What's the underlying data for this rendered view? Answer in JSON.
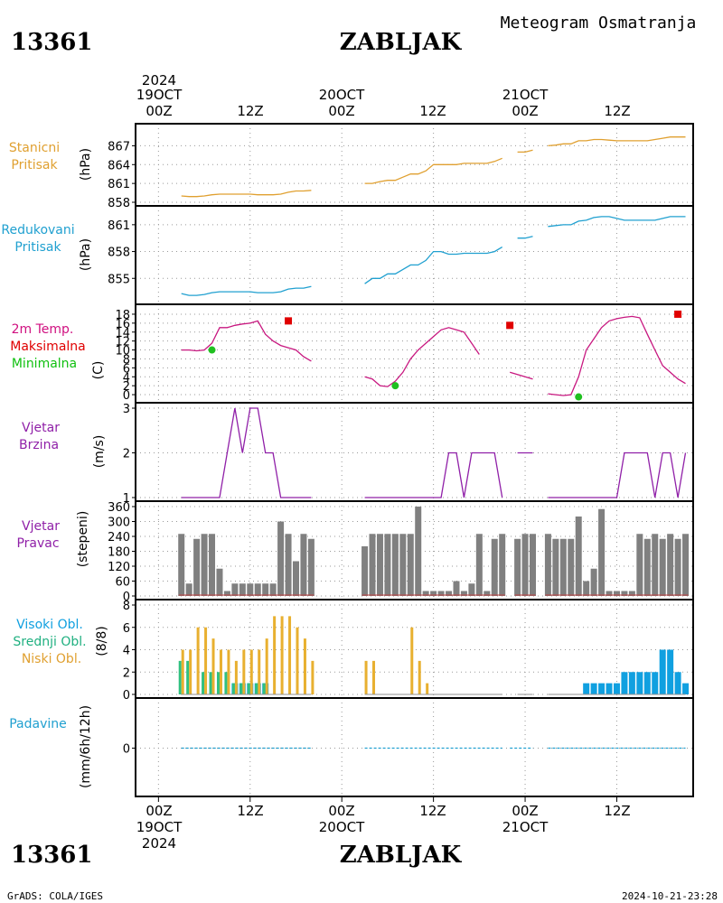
{
  "header": {
    "station_id": "13361",
    "station_name": "ZABLJAK",
    "title": "Meteogram Osmatranja"
  },
  "footer": {
    "station_id": "13361",
    "station_name": "ZABLJAK",
    "credit": "GrADS: COLA/IGES",
    "timestamp": "2024-10-21-23:28"
  },
  "time_axis": {
    "year_label": "2024",
    "day_labels": [
      "19OCT",
      "20OCT",
      "21OCT"
    ],
    "hour_labels": [
      "00Z",
      "12Z",
      "00Z",
      "12Z",
      "00Z",
      "12Z"
    ],
    "hours_span": [
      -3,
      70
    ]
  },
  "panel_labels": {
    "pressure": [
      "Stanicni",
      "Pritisak"
    ],
    "reduced": [
      "Redukovani",
      "Pritisak"
    ],
    "temp": [
      "2m Temp.",
      "Maksimalna",
      "Minimalna"
    ],
    "wind_speed": [
      "Vjetar",
      "Brzina"
    ],
    "wind_dir": [
      "Vjetar",
      "Pravac"
    ],
    "clouds": [
      "Visoki Obl.",
      "Srednji Obl.",
      "Niski Obl."
    ],
    "precip": [
      "Padavine"
    ]
  },
  "unit_labels": {
    "pressure": "(hPa)",
    "reduced": "(hPa)",
    "temp": "(C)",
    "wind_speed": "(m/s)",
    "wind_dir": "(stepeni)",
    "clouds": "(8/8)",
    "precip": "(mm/6h/12h)"
  },
  "colors": {
    "pressure": "#e0a030",
    "reduced": "#20a0d0",
    "temp_line": "#c81880",
    "tmax": "#e00000",
    "tmin": "#20c020",
    "wind": "#9020a8",
    "wind_dir": "#808080",
    "high_cloud": "#10a0e0",
    "mid_cloud": "#30c080",
    "low_cloud": "#e8b030",
    "precip": "#20a0d0",
    "label_pressure": "#e0a030",
    "label_reduced": "#20a0d0",
    "label_temp": "#d01080",
    "label_tmax": "#e00000",
    "label_tmin": "#10c010",
    "label_wind": "#9020a8",
    "label_clouds_high": "#10a0e0",
    "label_clouds_mid": "#20b080",
    "label_clouds_low": "#e0a030",
    "label_precip": "#20a0d0"
  },
  "chart_data": [
    {
      "type": "line",
      "name": "pressure",
      "ylabel": "(hPa)",
      "ylim": [
        858,
        868.5
      ],
      "yticks": [
        858,
        861,
        864,
        867
      ],
      "segments": [
        {
          "x": [
            3,
            4,
            5,
            6,
            7,
            8,
            9,
            10,
            11,
            12,
            13,
            14,
            15,
            16,
            17,
            18,
            19,
            20
          ],
          "y": [
            859,
            858.9,
            858.9,
            859,
            859.2,
            859.3,
            859.3,
            859.3,
            859.3,
            859.3,
            859.2,
            859.2,
            859.2,
            859.3,
            859.6,
            859.8,
            859.8,
            859.9
          ]
        },
        {
          "x": [
            27,
            28,
            29,
            30,
            31,
            32,
            33,
            34,
            35,
            36,
            37,
            38,
            39,
            40,
            41,
            42,
            43,
            44,
            45
          ],
          "y": [
            861,
            861,
            861.3,
            861.5,
            861.5,
            862,
            862.5,
            862.5,
            863,
            864,
            864,
            864,
            864,
            864.2,
            864.2,
            864.2,
            864.2,
            864.5,
            865
          ]
        },
        {
          "x": [
            47,
            48,
            49
          ],
          "y": [
            866,
            866,
            866.3
          ]
        },
        {
          "x": [
            51,
            52,
            53,
            54,
            55,
            56,
            57,
            58,
            59,
            60,
            61,
            62,
            63,
            64,
            65,
            66,
            67,
            68,
            69
          ],
          "y": [
            867,
            867.1,
            867.3,
            867.3,
            867.8,
            867.8,
            868,
            868,
            867.9,
            867.8,
            867.8,
            867.8,
            867.8,
            867.8,
            868,
            868.2,
            868.4,
            868.4,
            868.4
          ]
        }
      ]
    },
    {
      "type": "line",
      "name": "reduced",
      "ylabel": "(hPa)",
      "ylim": [
        852.5,
        862.5
      ],
      "yticks": [
        855,
        858,
        861
      ],
      "segments": [
        {
          "x": [
            3,
            4,
            5,
            6,
            7,
            8,
            9,
            10,
            11,
            12,
            13,
            14,
            15,
            16,
            17,
            18,
            19,
            20
          ],
          "y": [
            853.3,
            853.1,
            853.1,
            853.2,
            853.4,
            853.5,
            853.5,
            853.5,
            853.5,
            853.5,
            853.4,
            853.4,
            853.4,
            853.5,
            853.8,
            853.9,
            853.9,
            854.1
          ]
        },
        {
          "x": [
            27,
            28,
            29,
            30,
            31,
            32,
            33,
            34,
            35,
            36,
            37,
            38,
            39,
            40,
            41,
            42,
            43,
            44,
            45
          ],
          "y": [
            854.4,
            855,
            855,
            855.5,
            855.5,
            856,
            856.5,
            856.5,
            857,
            858,
            858,
            857.7,
            857.7,
            857.8,
            857.8,
            857.8,
            857.8,
            858,
            858.5
          ]
        },
        {
          "x": [
            47,
            48,
            49
          ],
          "y": [
            859.5,
            859.5,
            859.7
          ]
        },
        {
          "x": [
            51,
            52,
            53,
            54,
            55,
            56,
            57,
            58,
            59,
            60,
            61,
            62,
            63,
            64,
            65,
            66,
            67,
            68,
            69
          ],
          "y": [
            860.8,
            860.9,
            861,
            861,
            861.4,
            861.5,
            861.8,
            861.9,
            861.9,
            861.7,
            861.5,
            861.5,
            861.5,
            861.5,
            861.5,
            861.7,
            861.9,
            861.9,
            861.9
          ]
        }
      ]
    },
    {
      "type": "line",
      "name": "temperature",
      "ylabel": "(C)",
      "ylim": [
        -1,
        19
      ],
      "yticks": [
        0,
        2,
        4,
        6,
        8,
        10,
        12,
        14,
        16,
        18
      ],
      "segments": [
        {
          "x": [
            3,
            4,
            5,
            6,
            7,
            8,
            9,
            10,
            11,
            12,
            13,
            14,
            15,
            16,
            17,
            18,
            19,
            20
          ],
          "y": [
            10,
            10,
            9.8,
            10,
            11.5,
            15,
            15,
            15.5,
            15.8,
            16,
            16.5,
            13.5,
            12,
            11,
            10.5,
            10,
            8.5,
            7.5
          ]
        },
        {
          "x": [
            27,
            28,
            29,
            30,
            31,
            32,
            33,
            34,
            35,
            36,
            37,
            38,
            39,
            40,
            41,
            42,
            43,
            44,
            45
          ],
          "y": [
            4,
            3.5,
            2,
            1.8,
            3,
            5,
            8,
            10,
            11.5,
            13,
            14.5,
            15,
            14.5,
            14,
            11.5,
            9,
            null,
            null,
            null
          ]
        },
        {
          "x": [
            46,
            47,
            48,
            49
          ],
          "y": [
            5,
            4.5,
            4,
            3.5
          ]
        },
        {
          "x": [
            51,
            52,
            53,
            54,
            55,
            56,
            57,
            58,
            59,
            60,
            61,
            62,
            63,
            64,
            65,
            66,
            67,
            68,
            69
          ],
          "y": [
            0.2,
            0,
            -0.2,
            0,
            4,
            10,
            12.5,
            15,
            16.5,
            17,
            17.3,
            17.5,
            17.2,
            13.5,
            10,
            6.5,
            5,
            3.5,
            2.5
          ]
        }
      ],
      "tmax": [
        {
          "x": 17,
          "y": 16.5
        },
        {
          "x": 46,
          "y": 15.5
        },
        {
          "x": 68,
          "y": 18
        }
      ],
      "tmin": [
        {
          "x": 7,
          "y": 10
        },
        {
          "x": 31,
          "y": 2
        },
        {
          "x": 55,
          "y": -0.5
        }
      ]
    },
    {
      "type": "line",
      "name": "wind_speed",
      "ylabel": "(m/s)",
      "ylim": [
        1,
        3
      ],
      "yticks": [
        1,
        2,
        3
      ],
      "segments": [
        {
          "x": [
            3,
            4,
            5,
            6,
            7,
            8,
            9,
            10,
            11,
            12,
            13,
            14,
            15,
            16,
            17,
            18,
            19,
            20
          ],
          "y": [
            1,
            1,
            1,
            1,
            1,
            1,
            2,
            3,
            2,
            3,
            3,
            2,
            2,
            1,
            1,
            1,
            1,
            1
          ]
        },
        {
          "x": [
            27,
            28,
            29,
            30,
            31,
            32,
            33,
            34,
            35,
            36,
            37,
            38,
            39,
            40,
            41,
            42,
            43,
            44,
            45
          ],
          "y": [
            1,
            1,
            1,
            1,
            1,
            1,
            1,
            1,
            1,
            1,
            1,
            2,
            2,
            1,
            2,
            2,
            2,
            2,
            1
          ]
        },
        {
          "x": [
            47,
            48,
            49
          ],
          "y": [
            2,
            2,
            2
          ]
        },
        {
          "x": [
            51,
            52,
            53,
            54,
            55,
            56,
            57,
            58,
            59,
            60,
            61,
            62,
            63,
            64,
            65,
            66,
            67,
            68,
            69
          ],
          "y": [
            1,
            1,
            1,
            1,
            1,
            1,
            1,
            1,
            1,
            1,
            2,
            2,
            2,
            2,
            1,
            2,
            2,
            1,
            2
          ]
        }
      ]
    },
    {
      "type": "bar",
      "name": "wind_direction",
      "ylabel": "(stepeni)",
      "ylim": [
        0,
        360
      ],
      "yticks": [
        0,
        60,
        120,
        180,
        240,
        300,
        360
      ],
      "x": [
        3,
        4,
        5,
        6,
        7,
        8,
        9,
        10,
        11,
        12,
        13,
        14,
        15,
        16,
        17,
        18,
        19,
        20,
        27,
        28,
        29,
        30,
        31,
        32,
        33,
        34,
        35,
        36,
        37,
        38,
        39,
        40,
        41,
        42,
        43,
        44,
        45,
        47,
        48,
        49,
        51,
        52,
        53,
        54,
        55,
        56,
        57,
        58,
        59,
        60,
        61,
        62,
        63,
        64,
        65,
        66,
        67,
        68,
        69
      ],
      "values": [
        250,
        50,
        230,
        250,
        250,
        110,
        20,
        50,
        50,
        50,
        50,
        50,
        50,
        300,
        250,
        140,
        250,
        230,
        200,
        250,
        250,
        250,
        250,
        250,
        250,
        360,
        20,
        20,
        20,
        20,
        60,
        20,
        50,
        250,
        20,
        230,
        250,
        230,
        250,
        250,
        250,
        230,
        230,
        230,
        320,
        60,
        110,
        350,
        20,
        20,
        20,
        20,
        250,
        230,
        250,
        230,
        250,
        230,
        250
      ]
    },
    {
      "type": "bar",
      "name": "clouds",
      "ylabel": "(8/8)",
      "ylim": [
        0,
        8
      ],
      "yticks": [
        0,
        2,
        4,
        6,
        8
      ],
      "x": [
        3,
        4,
        5,
        6,
        7,
        8,
        9,
        10,
        11,
        12,
        13,
        14,
        15,
        16,
        17,
        18,
        19,
        20,
        27,
        28,
        29,
        30,
        31,
        32,
        33,
        34,
        35,
        36,
        37,
        38,
        39,
        40,
        41,
        42,
        43,
        44,
        45,
        47,
        48,
        49,
        51,
        52,
        53,
        54,
        55,
        56,
        57,
        58,
        59,
        60,
        61,
        62,
        63,
        64,
        65,
        66,
        67,
        68,
        69
      ],
      "series": [
        {
          "name": "Niski Obl.",
          "values": [
            4,
            4,
            6,
            6,
            5,
            4,
            4,
            3,
            4,
            4,
            4,
            5,
            7,
            7,
            7,
            6,
            5,
            3,
            3,
            3,
            0,
            0,
            0,
            0,
            6,
            3,
            1,
            0,
            0,
            0,
            0,
            0,
            0,
            0,
            0,
            0,
            0,
            0,
            0,
            0,
            0,
            0,
            0,
            0,
            0,
            0,
            0,
            0,
            0,
            0,
            0,
            0,
            0,
            0,
            0,
            0,
            0,
            0,
            0
          ]
        },
        {
          "name": "Srednji Obl.",
          "values": [
            3,
            3,
            0,
            2,
            2,
            2,
            2,
            1,
            1,
            1,
            1,
            1,
            0,
            0,
            0,
            0,
            0,
            0,
            0,
            0,
            0,
            0,
            0,
            0,
            0,
            0,
            0,
            0,
            0,
            0,
            0,
            0,
            0,
            0,
            0,
            0,
            0,
            0,
            0,
            0,
            0,
            0,
            0,
            0,
            0,
            0,
            0,
            0,
            0,
            0,
            0,
            0,
            0,
            0,
            0,
            0,
            0,
            0,
            0
          ]
        },
        {
          "name": "Visoki Obl.",
          "values": [
            0,
            0,
            0,
            0,
            0,
            0,
            0,
            1,
            1,
            1,
            1,
            1,
            0,
            0,
            0,
            0,
            0,
            0,
            0,
            0,
            0,
            0,
            0,
            0,
            0,
            0,
            0,
            0,
            0,
            0,
            0,
            0,
            0,
            0,
            0,
            0,
            0,
            0,
            0,
            0,
            0,
            0,
            0,
            0,
            0,
            1,
            1,
            1,
            1,
            1,
            2,
            2,
            2,
            2,
            2,
            4,
            4,
            2,
            1
          ]
        }
      ]
    },
    {
      "type": "line",
      "name": "precipitation",
      "ylabel": "(mm/6h/12h)",
      "ylim": [
        -5,
        5
      ],
      "yticks": [
        0
      ],
      "segments": [
        {
          "x": [
            3,
            20
          ],
          "y": [
            0,
            0
          ]
        },
        {
          "x": [
            27,
            45
          ],
          "y": [
            0,
            0
          ]
        },
        {
          "x": [
            46,
            49
          ],
          "y": [
            0,
            0
          ]
        },
        {
          "x": [
            51,
            69
          ],
          "y": [
            0,
            0
          ]
        }
      ]
    }
  ]
}
